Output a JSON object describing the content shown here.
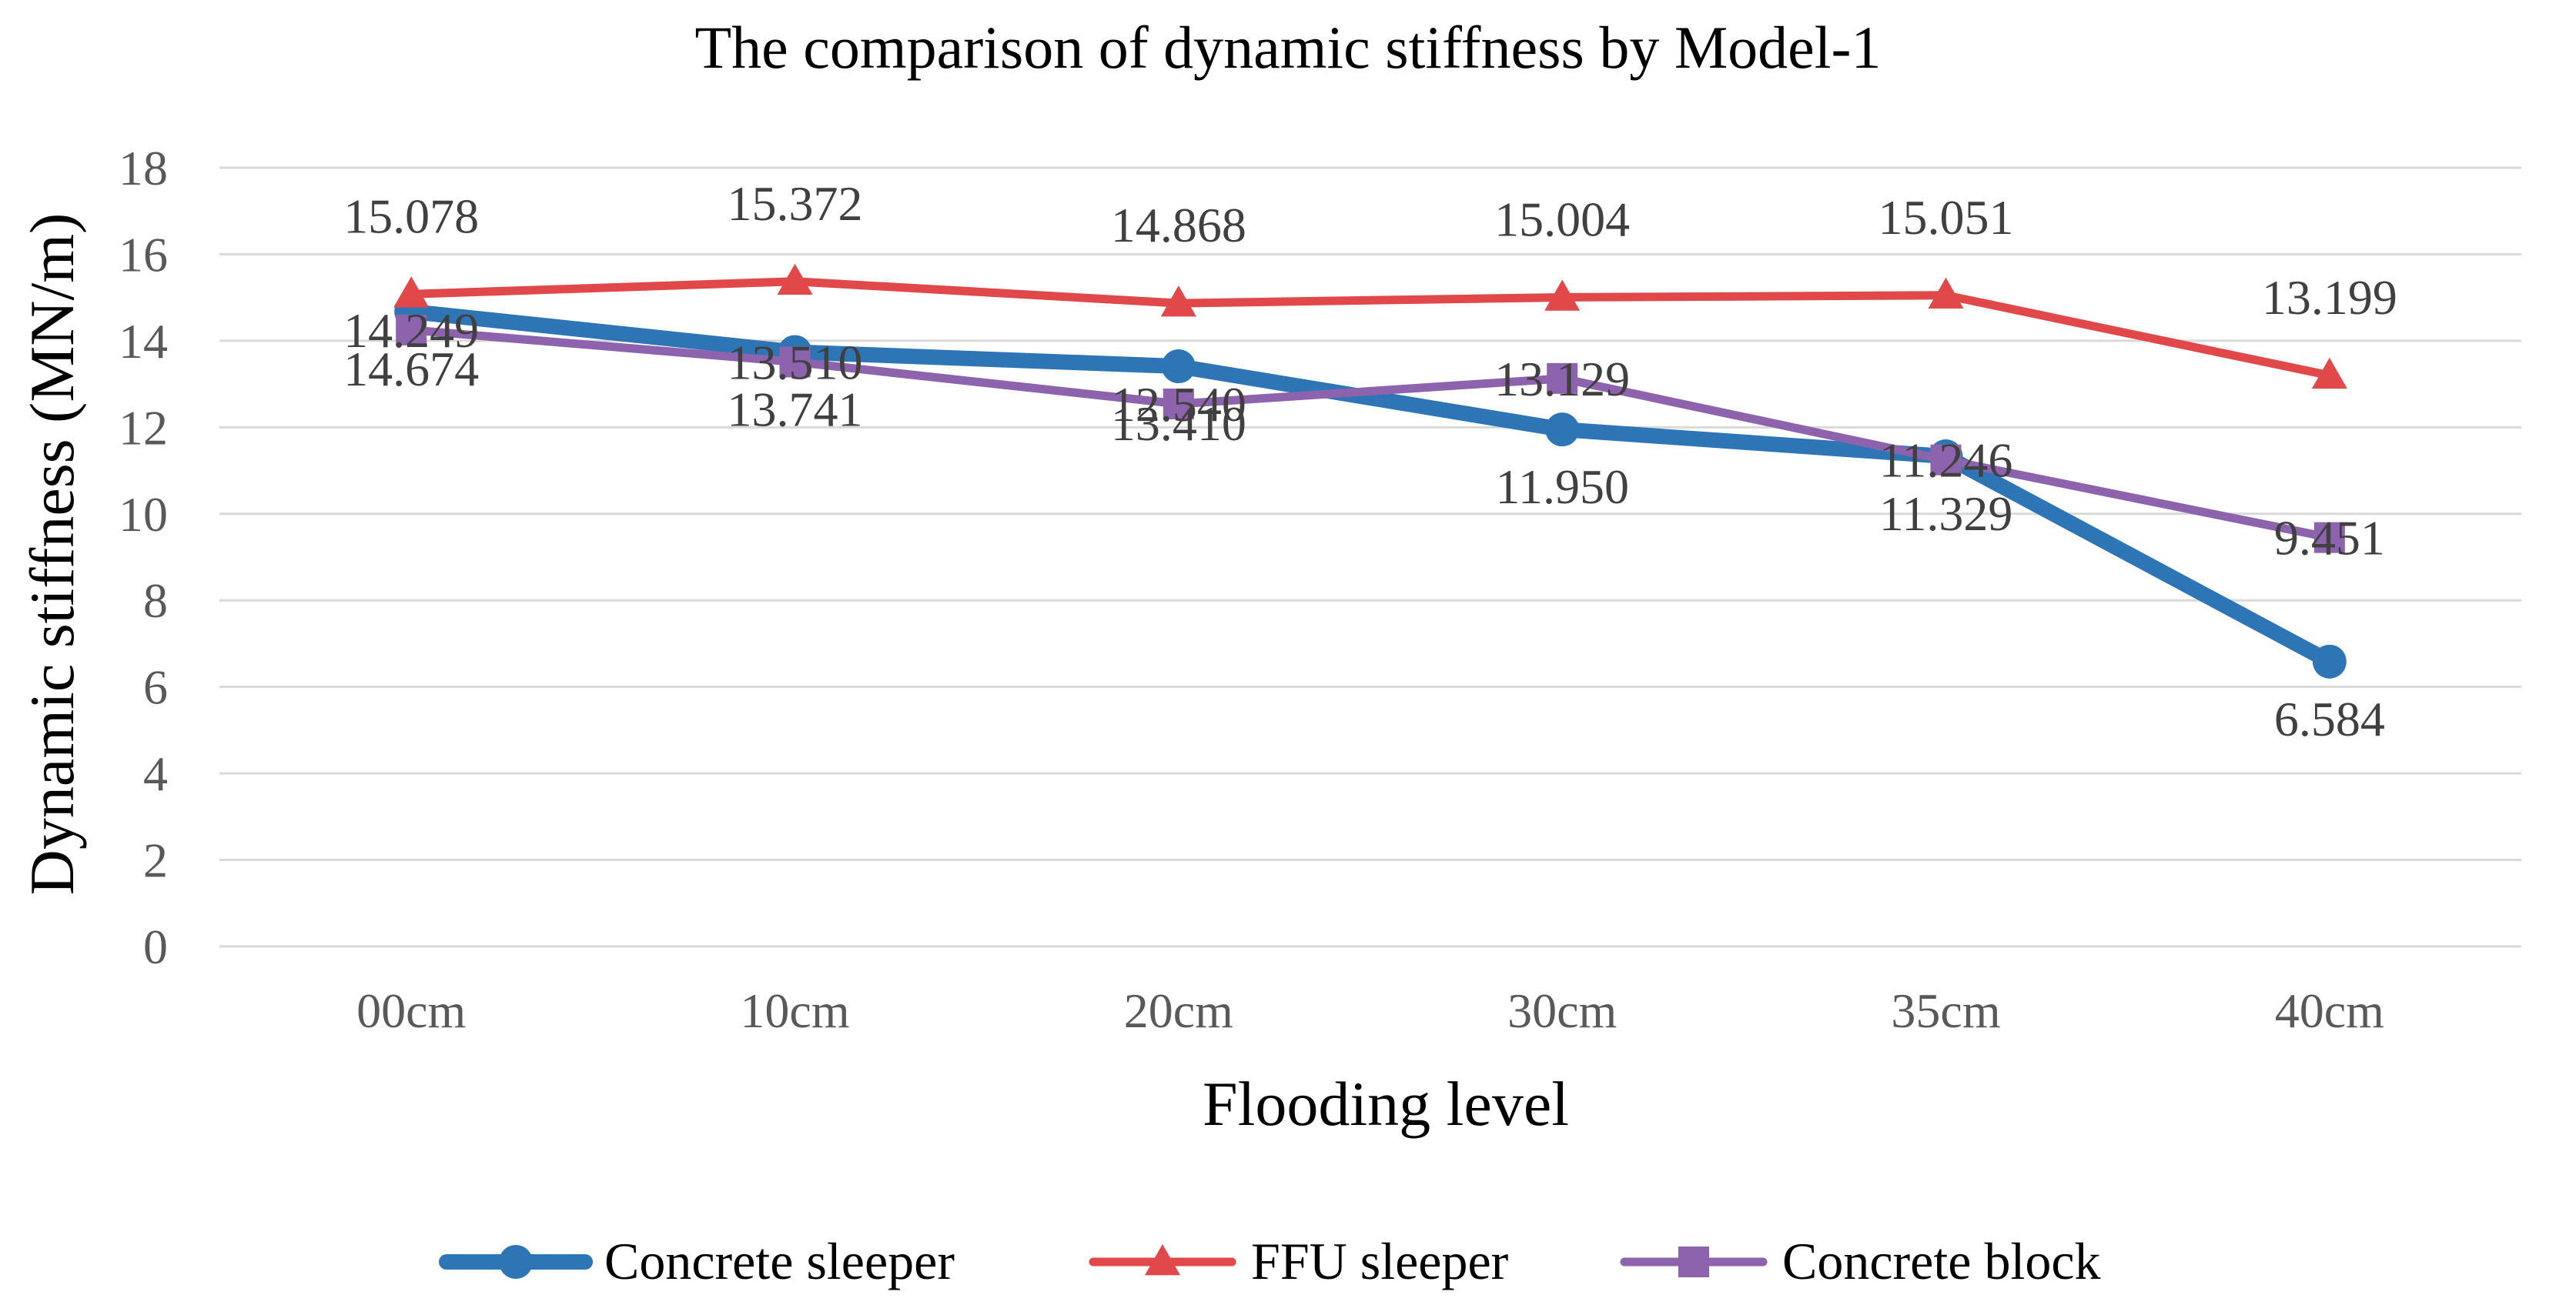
{
  "chart_data": {
    "type": "line",
    "title": "The comparison of dynamic stiffness by Model-1",
    "xlabel": "Flooding level",
    "ylabel": "Dynamic stiffness (MN/m)",
    "categories": [
      "00cm",
      "10cm",
      "20cm",
      "30cm",
      "35cm",
      "40cm"
    ],
    "ylim": [
      0,
      18
    ],
    "yticks": [
      0,
      2,
      4,
      6,
      8,
      10,
      12,
      14,
      16,
      18
    ],
    "grid": true,
    "legend_position": "bottom",
    "series": [
      {
        "name": "Concrete sleeper",
        "values": [
          14.674,
          13.741,
          13.41,
          11.95,
          11.329,
          6.584
        ],
        "labels": [
          "14.674",
          "13.741",
          "13.410",
          "11.950",
          "11.329",
          "6.584"
        ],
        "label_position": "below",
        "color": "#2e75b6",
        "marker": "circle"
      },
      {
        "name": "FFU sleeper",
        "values": [
          15.078,
          15.372,
          14.868,
          15.004,
          15.051,
          13.199
        ],
        "labels": [
          "15.078",
          "15.372",
          "14.868",
          "15.004",
          "15.051",
          "13.199"
        ],
        "label_position": "above",
        "color": "#e0484a",
        "marker": "triangle"
      },
      {
        "name": "Concrete block",
        "values": [
          14.249,
          13.51,
          12.54,
          13.129,
          11.246,
          9.451
        ],
        "labels": [
          "14.249",
          "13.510",
          "12.540",
          "13.129",
          "11.246",
          "9.451"
        ],
        "label_position": "center",
        "color": "#8e63ae",
        "marker": "square"
      }
    ]
  }
}
